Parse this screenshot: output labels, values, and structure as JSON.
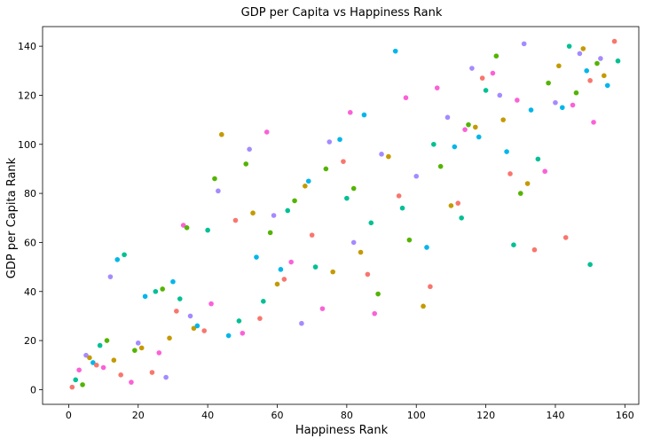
{
  "chart_data": {
    "type": "scatter",
    "title": "GDP per Capita vs Happiness Rank",
    "xlabel": "Happiness Rank",
    "ylabel": "GDP per Capita Rank",
    "xlim": [
      -7.5,
      164
    ],
    "ylim": [
      -6,
      148
    ],
    "xticks": [
      0,
      20,
      40,
      60,
      80,
      100,
      120,
      140,
      160
    ],
    "yticks": [
      0,
      20,
      40,
      60,
      80,
      100,
      120,
      140
    ],
    "grid": false,
    "legend": "none",
    "palette": [
      "#f8766d",
      "#c49a00",
      "#53b400",
      "#00c094",
      "#00b6eb",
      "#a58aff",
      "#fb61d7"
    ],
    "points": [
      [
        1,
        1
      ],
      [
        2,
        4
      ],
      [
        3,
        8
      ],
      [
        4,
        2
      ],
      [
        5,
        14
      ],
      [
        6,
        13
      ],
      [
        7,
        11
      ],
      [
        8,
        10
      ],
      [
        9,
        18
      ],
      [
        10,
        9
      ],
      [
        11,
        20
      ],
      [
        12,
        46
      ],
      [
        13,
        12
      ],
      [
        14,
        53
      ],
      [
        15,
        6
      ],
      [
        16,
        55
      ],
      [
        18,
        3
      ],
      [
        19,
        16
      ],
      [
        20,
        19
      ],
      [
        21,
        17
      ],
      [
        22,
        38
      ],
      [
        24,
        7
      ],
      [
        25,
        40
      ],
      [
        26,
        15
      ],
      [
        27,
        41
      ],
      [
        28,
        5
      ],
      [
        29,
        21
      ],
      [
        30,
        44
      ],
      [
        31,
        32
      ],
      [
        32,
        37
      ],
      [
        33,
        67
      ],
      [
        34,
        66
      ],
      [
        35,
        30
      ],
      [
        36,
        25
      ],
      [
        37,
        26
      ],
      [
        39,
        24
      ],
      [
        40,
        65
      ],
      [
        41,
        35
      ],
      [
        42,
        86
      ],
      [
        43,
        81
      ],
      [
        44,
        104
      ],
      [
        46,
        22
      ],
      [
        48,
        69
      ],
      [
        49,
        28
      ],
      [
        50,
        23
      ],
      [
        51,
        92
      ],
      [
        52,
        98
      ],
      [
        53,
        72
      ],
      [
        54,
        54
      ],
      [
        55,
        29
      ],
      [
        56,
        36
      ],
      [
        57,
        105
      ],
      [
        58,
        64
      ],
      [
        59,
        71
      ],
      [
        60,
        43
      ],
      [
        61,
        49
      ],
      [
        62,
        45
      ],
      [
        63,
        73
      ],
      [
        64,
        52
      ],
      [
        65,
        77
      ],
      [
        67,
        27
      ],
      [
        68,
        83
      ],
      [
        69,
        85
      ],
      [
        70,
        63
      ],
      [
        71,
        50
      ],
      [
        73,
        33
      ],
      [
        74,
        90
      ],
      [
        75,
        101
      ],
      [
        76,
        48
      ],
      [
        78,
        102
      ],
      [
        79,
        93
      ],
      [
        80,
        78
      ],
      [
        81,
        113
      ],
      [
        82,
        82
      ],
      [
        82,
        60
      ],
      [
        84,
        56
      ],
      [
        85,
        112
      ],
      [
        86,
        47
      ],
      [
        87,
        68
      ],
      [
        88,
        31
      ],
      [
        89,
        39
      ],
      [
        90,
        96
      ],
      [
        92,
        95
      ],
      [
        94,
        138
      ],
      [
        95,
        79
      ],
      [
        96,
        74
      ],
      [
        97,
        119
      ],
      [
        98,
        61
      ],
      [
        100,
        87
      ],
      [
        102,
        34
      ],
      [
        103,
        58
      ],
      [
        104,
        42
      ],
      [
        105,
        100
      ],
      [
        106,
        123
      ],
      [
        107,
        91
      ],
      [
        109,
        111
      ],
      [
        110,
        75
      ],
      [
        111,
        99
      ],
      [
        112,
        76
      ],
      [
        113,
        70
      ],
      [
        114,
        106
      ],
      [
        115,
        108
      ],
      [
        116,
        131
      ],
      [
        117,
        107
      ],
      [
        118,
        103
      ],
      [
        119,
        127
      ],
      [
        120,
        122
      ],
      [
        122,
        129
      ],
      [
        123,
        136
      ],
      [
        124,
        120
      ],
      [
        125,
        110
      ],
      [
        126,
        97
      ],
      [
        127,
        88
      ],
      [
        128,
        59
      ],
      [
        129,
        118
      ],
      [
        130,
        80
      ],
      [
        131,
        141
      ],
      [
        132,
        84
      ],
      [
        133,
        114
      ],
      [
        134,
        57
      ],
      [
        135,
        94
      ],
      [
        137,
        89
      ],
      [
        138,
        125
      ],
      [
        140,
        117
      ],
      [
        141,
        132
      ],
      [
        142,
        115
      ],
      [
        143,
        62
      ],
      [
        144,
        140
      ],
      [
        145,
        116
      ],
      [
        146,
        121
      ],
      [
        147,
        137
      ],
      [
        148,
        139
      ],
      [
        149,
        130
      ],
      [
        150,
        126
      ],
      [
        150,
        51
      ],
      [
        151,
        109
      ],
      [
        152,
        133
      ],
      [
        153,
        135
      ],
      [
        154,
        128
      ],
      [
        155,
        124
      ],
      [
        157,
        142
      ],
      [
        158,
        134
      ]
    ]
  }
}
